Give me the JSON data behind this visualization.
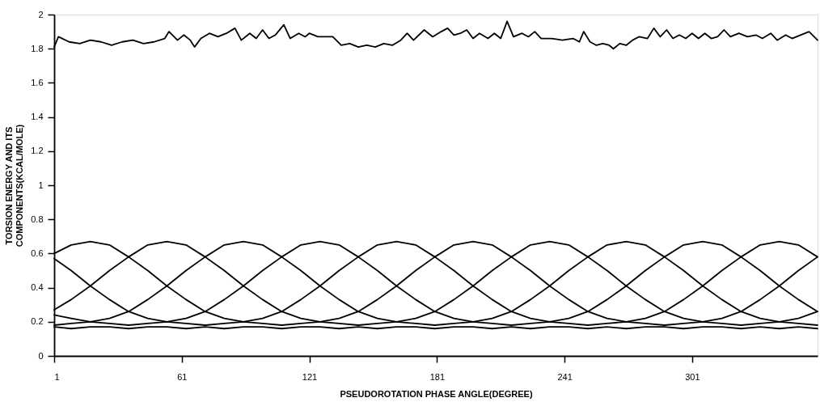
{
  "chart_data": {
    "type": "line",
    "xlabel": "PSEUDOROTATION PHASE ANGLE(DEGREE)",
    "ylabel": "TORSION ENERGY AND ITS\nCOMPONENTS(KCAL/MOLE)",
    "xlim": [
      1,
      360
    ],
    "xticks": [
      1,
      61,
      121,
      181,
      241,
      301
    ],
    "ylim": [
      0,
      2
    ],
    "yticks": [
      0,
      0.2,
      0.4,
      0.6,
      0.8,
      1,
      1.2,
      1.4,
      1.6,
      1.8,
      2
    ],
    "grid": false,
    "legend": false,
    "marker": "none",
    "line_style": "solid",
    "x": [
      1,
      9,
      18,
      27,
      36,
      45,
      54,
      63,
      72,
      81,
      90,
      99,
      108,
      117,
      126,
      135,
      144,
      153,
      162,
      171,
      180,
      189,
      198,
      207,
      216,
      225,
      234,
      243,
      252,
      261,
      270,
      279,
      288,
      297,
      306,
      315,
      324,
      333,
      342,
      351,
      360
    ],
    "series": [
      {
        "color": "#000000",
        "x": [
          1,
          3,
          8,
          13,
          18,
          23,
          28,
          33,
          38,
          43,
          48,
          53,
          55,
          59,
          62,
          65,
          67,
          70,
          74,
          78,
          82,
          86,
          89,
          93,
          96,
          99,
          102,
          105,
          109,
          112,
          116,
          119,
          121,
          125,
          132,
          136,
          140,
          144,
          148,
          152,
          156,
          160,
          164,
          167,
          170,
          175,
          179,
          183,
          186,
          189,
          192,
          195,
          198,
          201,
          205,
          208,
          211,
          214,
          217,
          221,
          224,
          227,
          230,
          235,
          240,
          245,
          248,
          250,
          253,
          256,
          259,
          262,
          264,
          267,
          270,
          273,
          276,
          280,
          283,
          286,
          289,
          292,
          295,
          298,
          301,
          304,
          307,
          310,
          313,
          316,
          319,
          323,
          327,
          331,
          334,
          338,
          341,
          345,
          348,
          352,
          356,
          360
        ],
        "values": [
          1.81,
          1.87,
          1.84,
          1.83,
          1.85,
          1.84,
          1.82,
          1.84,
          1.85,
          1.83,
          1.84,
          1.86,
          1.9,
          1.85,
          1.88,
          1.85,
          1.81,
          1.86,
          1.89,
          1.87,
          1.89,
          1.92,
          1.85,
          1.89,
          1.86,
          1.91,
          1.86,
          1.88,
          1.94,
          1.86,
          1.89,
          1.87,
          1.89,
          1.87,
          1.87,
          1.82,
          1.83,
          1.81,
          1.82,
          1.81,
          1.83,
          1.82,
          1.85,
          1.89,
          1.85,
          1.91,
          1.87,
          1.9,
          1.92,
          1.88,
          1.89,
          1.91,
          1.86,
          1.89,
          1.86,
          1.89,
          1.86,
          1.96,
          1.87,
          1.89,
          1.87,
          1.9,
          1.86,
          1.86,
          1.85,
          1.86,
          1.84,
          1.9,
          1.84,
          1.82,
          1.83,
          1.82,
          1.8,
          1.83,
          1.82,
          1.85,
          1.87,
          1.86,
          1.92,
          1.87,
          1.91,
          1.86,
          1.88,
          1.86,
          1.89,
          1.86,
          1.89,
          1.86,
          1.87,
          1.91,
          1.87,
          1.89,
          1.87,
          1.88,
          1.86,
          1.89,
          1.85,
          1.88,
          1.86,
          1.88,
          1.9,
          1.85
        ]
      },
      {
        "color": "#000000",
        "values": [
          0.6,
          0.65,
          0.67,
          0.65,
          0.58,
          0.5,
          0.41,
          0.33,
          0.26,
          0.22,
          0.2,
          0.19,
          0.18,
          0.19,
          0.2,
          0.22,
          0.26,
          0.33,
          0.41,
          0.5,
          0.58,
          0.65,
          0.67,
          0.65,
          0.58,
          0.5,
          0.41,
          0.33,
          0.26,
          0.22,
          0.2,
          0.19,
          0.18,
          0.19,
          0.2,
          0.22,
          0.26,
          0.33,
          0.41,
          0.5,
          0.58
        ]
      },
      {
        "color": "#000000",
        "values": [
          0.27,
          0.33,
          0.41,
          0.5,
          0.58,
          0.65,
          0.67,
          0.65,
          0.58,
          0.5,
          0.41,
          0.33,
          0.26,
          0.22,
          0.2,
          0.19,
          0.18,
          0.19,
          0.2,
          0.22,
          0.26,
          0.33,
          0.41,
          0.5,
          0.58,
          0.65,
          0.67,
          0.65,
          0.58,
          0.5,
          0.41,
          0.33,
          0.26,
          0.22,
          0.2,
          0.19,
          0.18,
          0.19,
          0.2,
          0.22,
          0.26
        ]
      },
      {
        "color": "#000000",
        "values": [
          0.18,
          0.19,
          0.2,
          0.22,
          0.26,
          0.33,
          0.41,
          0.5,
          0.58,
          0.65,
          0.67,
          0.65,
          0.58,
          0.5,
          0.41,
          0.33,
          0.26,
          0.22,
          0.2,
          0.19,
          0.18,
          0.19,
          0.2,
          0.22,
          0.26,
          0.33,
          0.41,
          0.5,
          0.58,
          0.65,
          0.67,
          0.65,
          0.58,
          0.5,
          0.41,
          0.33,
          0.26,
          0.22,
          0.2,
          0.19,
          0.18
        ]
      },
      {
        "color": "#000000",
        "values": [
          0.24,
          0.22,
          0.2,
          0.19,
          0.18,
          0.19,
          0.2,
          0.22,
          0.26,
          0.33,
          0.41,
          0.5,
          0.58,
          0.65,
          0.67,
          0.65,
          0.58,
          0.5,
          0.41,
          0.33,
          0.26,
          0.22,
          0.2,
          0.19,
          0.18,
          0.19,
          0.2,
          0.22,
          0.26,
          0.33,
          0.41,
          0.5,
          0.58,
          0.65,
          0.67,
          0.65,
          0.58,
          0.5,
          0.41,
          0.33,
          0.26
        ]
      },
      {
        "color": "#000000",
        "values": [
          0.57,
          0.5,
          0.41,
          0.33,
          0.26,
          0.22,
          0.2,
          0.19,
          0.18,
          0.19,
          0.2,
          0.22,
          0.26,
          0.33,
          0.41,
          0.5,
          0.58,
          0.65,
          0.67,
          0.65,
          0.58,
          0.5,
          0.41,
          0.33,
          0.26,
          0.22,
          0.2,
          0.19,
          0.18,
          0.19,
          0.2,
          0.22,
          0.26,
          0.33,
          0.41,
          0.5,
          0.58,
          0.65,
          0.67,
          0.65,
          0.58
        ]
      },
      {
        "color": "#000000",
        "values": [
          0.17,
          0.16,
          0.17,
          0.17,
          0.16,
          0.17,
          0.17,
          0.16,
          0.17,
          0.16,
          0.17,
          0.17,
          0.16,
          0.17,
          0.17,
          0.16,
          0.17,
          0.16,
          0.17,
          0.17,
          0.16,
          0.17,
          0.17,
          0.16,
          0.17,
          0.16,
          0.17,
          0.17,
          0.16,
          0.17,
          0.16,
          0.17,
          0.17,
          0.16,
          0.17,
          0.17,
          0.16,
          0.17,
          0.16,
          0.17,
          0.16
        ]
      }
    ]
  }
}
